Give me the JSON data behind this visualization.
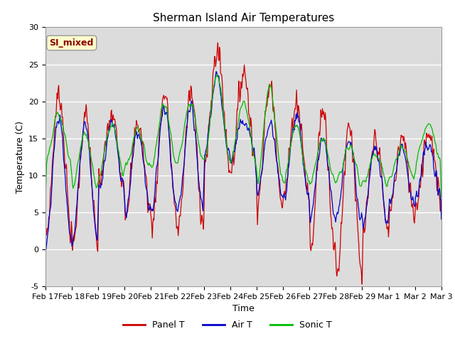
{
  "title": "Sherman Island Air Temperatures",
  "xlabel": "Time",
  "ylabel": "Temperature (C)",
  "ylim": [
    -5,
    30
  ],
  "yticks": [
    -5,
    0,
    5,
    10,
    15,
    20,
    25,
    30
  ],
  "xtick_labels": [
    "Feb 17",
    "Feb 18",
    "Feb 19",
    "Feb 20",
    "Feb 21",
    "Feb 22",
    "Feb 23",
    "Feb 24",
    "Feb 25",
    "Feb 26",
    "Feb 27",
    "Feb 28",
    "Feb 29",
    "Mar 1",
    "Mar 2",
    "Mar 3"
  ],
  "legend_labels": [
    "Panel T",
    "Air T",
    "Sonic T"
  ],
  "line_colors": [
    "#cc0000",
    "#0000cc",
    "#00bb00"
  ],
  "annotation_text": "SI_mixed",
  "annotation_color": "#8b0000",
  "annotation_bg": "#ffffcc",
  "plot_bg": "#dcdcdc",
  "title_fontsize": 11,
  "axis_fontsize": 9,
  "tick_fontsize": 8
}
